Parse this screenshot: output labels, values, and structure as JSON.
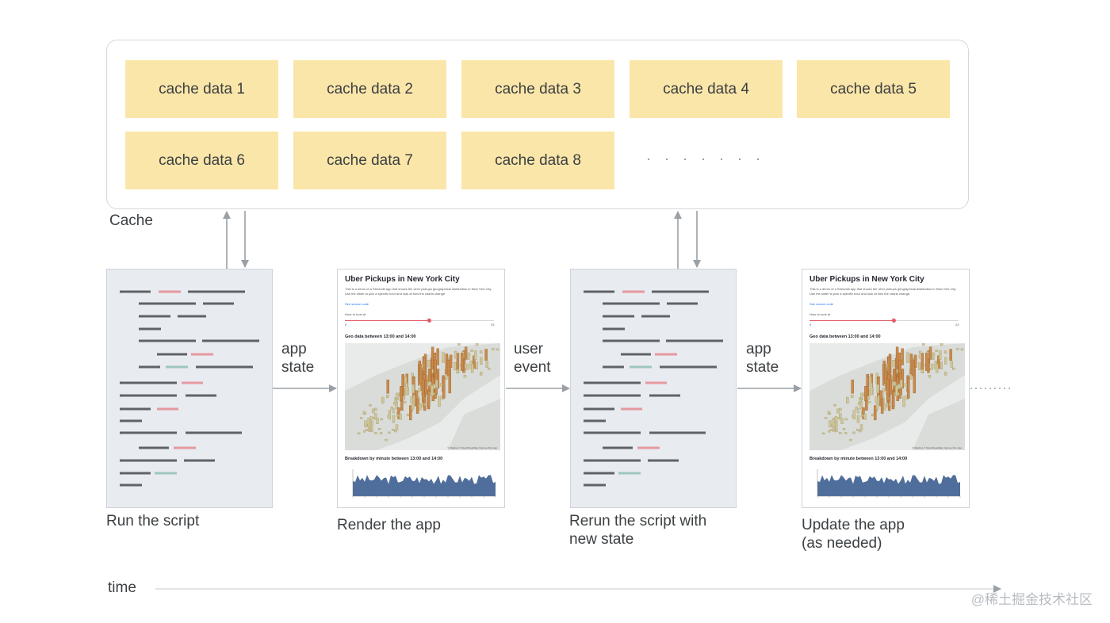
{
  "cache": {
    "label": "Cache",
    "cells": [
      "cache data 1",
      "cache data 2",
      "cache data 3",
      "cache data 4",
      "cache data 5",
      "cache data 6",
      "cache data 7",
      "cache data 8"
    ],
    "ellipsis": "· · · · · · ·"
  },
  "app_panel": {
    "title": "Uber Pickups in New York City",
    "description": "This is a demo of a Streamlit app that shows the Uber pickups geographical distribution in New York City. Use the slider to pick a specific hour and look at how the charts change.",
    "link": "See source code",
    "slider_label": "Hour to look at",
    "slider_value": "13",
    "slider_min": "0",
    "slider_max": "23",
    "slider_fraction": 0.565,
    "geo_title": "Geo data between 13:00 and 14:00",
    "map_credit": "© Mapbox © OpenStreetMap Improve this map",
    "breakdown_title": "Breakdown by minute between 13:00 and 14:00"
  },
  "captions": {
    "run_script": "Run the script",
    "render_app": "Render the app",
    "rerun_line1": "Rerun the script with",
    "rerun_line2": "new state",
    "update_line1": "Update the app",
    "update_line2": "(as needed)"
  },
  "flow_labels": {
    "app_state_1_line1": "app",
    "app_state_1_line2": "state",
    "user_event_line1": "user",
    "user_event_line2": "event",
    "app_state_2_line1": "app",
    "app_state_2_line2": "state"
  },
  "timeline": {
    "label": "time"
  },
  "watermark": "@稀土掘金技术社区",
  "colors": {
    "cache_cell": "#fbe6a9",
    "script_bg": "#e8ebf0",
    "code_gray": "#5f6368",
    "code_red": "#e59a9f",
    "code_teal": "#9fc5bf",
    "arrow": "#9aa0a6",
    "area_fill": "#4f6e9b"
  }
}
